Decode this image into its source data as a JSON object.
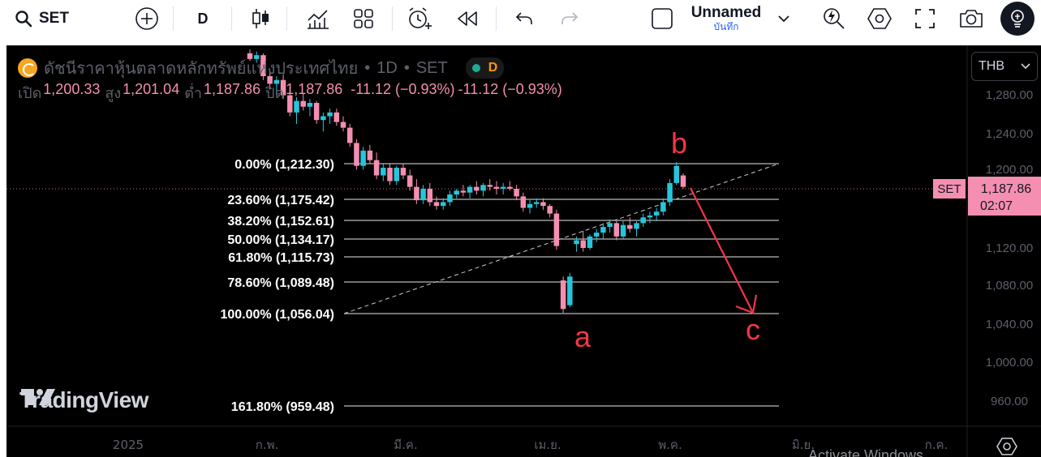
{
  "toolbar": {
    "symbol": "SET",
    "interval": "D",
    "layout_name": "Unnamed",
    "save_label": "บันทึก"
  },
  "legend": {
    "title": "ดัชนีราคาหุ้นตลาดหลักทรัพย์แห่งประเทศไทย",
    "interval": "1D",
    "exchange": "SET",
    "badge": "D",
    "o_label": "เปิด",
    "o_value": "1,200.33",
    "h_label": "สูง",
    "h_value": "1,201.04",
    "l_label": "ต่ำ",
    "l_value": "1,187.86",
    "c_label": "ปิด",
    "c_value": "1,187.86",
    "change": "-11.12 (−0.93%)",
    "change2": "-11.12 (−0.93%)"
  },
  "currency": "THB",
  "price_axis": {
    "labels": [
      "1,280.00",
      "1,240.00",
      "1,200.00",
      "1,120.00",
      "1,080.00",
      "1,040.00",
      "1,000.00",
      "960.00"
    ],
    "last_symbol": "SET",
    "last_price": "1,187.86",
    "countdown": "02:07"
  },
  "time_axis": {
    "labels": [
      "2025",
      "ก.พ.",
      "มี.ค.",
      "เม.ย.",
      "พ.ค.",
      "มิ.ย.",
      "ก.ค."
    ]
  },
  "watermark": "TradingView",
  "activate_text": "Activate Windows",
  "colors": {
    "up": "#26c6da",
    "down": "#f48fb1",
    "fib_line": "#e8e8e8",
    "wave_label": "#f23645",
    "last_price_bg": "#f48fb1"
  },
  "chart_data": {
    "type": "candlestick",
    "y_scale_note": "price in THB index points",
    "fib_levels": [
      {
        "label": "0.00% (1,212.30)",
        "pct": 0,
        "price": 1212.3
      },
      {
        "label": "23.60% (1,175.42)",
        "pct": 23.6,
        "price": 1175.42
      },
      {
        "label": "38.20% (1,152.61)",
        "pct": 38.2,
        "price": 1152.61
      },
      {
        "label": "50.00% (1,134.17)",
        "pct": 50.0,
        "price": 1134.17
      },
      {
        "label": "61.80% (1,115.73)",
        "pct": 61.8,
        "price": 1115.73
      },
      {
        "label": "78.60% (1,089.48)",
        "pct": 78.6,
        "price": 1089.48
      },
      {
        "label": "100.00% (1,056.04)",
        "pct": 100,
        "price": 1056.04
      },
      {
        "label": "161.80% (959.48)",
        "pct": 161.8,
        "price": 959.48
      }
    ],
    "wave_labels": [
      "a",
      "b",
      "c"
    ],
    "candles": [
      [
        1328,
        1332,
        1320,
        1322
      ],
      [
        1322,
        1330,
        1318,
        1326
      ],
      [
        1326,
        1328,
        1300,
        1304
      ],
      [
        1304,
        1310,
        1290,
        1296
      ],
      [
        1296,
        1304,
        1284,
        1300
      ],
      [
        1300,
        1306,
        1280,
        1284
      ],
      [
        1284,
        1292,
        1262,
        1266
      ],
      [
        1266,
        1282,
        1254,
        1278
      ],
      [
        1278,
        1286,
        1268,
        1272
      ],
      [
        1272,
        1280,
        1262,
        1276
      ],
      [
        1276,
        1278,
        1254,
        1258
      ],
      [
        1258,
        1266,
        1246,
        1262
      ],
      [
        1262,
        1270,
        1254,
        1266
      ],
      [
        1266,
        1270,
        1252,
        1256
      ],
      [
        1256,
        1262,
        1246,
        1250
      ],
      [
        1250,
        1254,
        1230,
        1234
      ],
      [
        1234,
        1238,
        1206,
        1210
      ],
      [
        1210,
        1230,
        1206,
        1226
      ],
      [
        1226,
        1232,
        1212,
        1216
      ],
      [
        1216,
        1224,
        1196,
        1200
      ],
      [
        1200,
        1212,
        1194,
        1208
      ],
      [
        1208,
        1212,
        1190,
        1194
      ],
      [
        1194,
        1210,
        1190,
        1208
      ],
      [
        1208,
        1212,
        1196,
        1200
      ],
      [
        1200,
        1206,
        1184,
        1188
      ],
      [
        1188,
        1196,
        1170,
        1174
      ],
      [
        1174,
        1190,
        1170,
        1186
      ],
      [
        1186,
        1192,
        1168,
        1172
      ],
      [
        1172,
        1178,
        1164,
        1168
      ],
      [
        1168,
        1176,
        1164,
        1172
      ],
      [
        1172,
        1184,
        1168,
        1180
      ],
      [
        1180,
        1186,
        1176,
        1184
      ],
      [
        1184,
        1190,
        1178,
        1182
      ],
      [
        1182,
        1190,
        1176,
        1188
      ],
      [
        1188,
        1194,
        1180,
        1184
      ],
      [
        1184,
        1192,
        1178,
        1190
      ],
      [
        1190,
        1196,
        1184,
        1188
      ],
      [
        1188,
        1194,
        1180,
        1186
      ],
      [
        1186,
        1192,
        1180,
        1188
      ],
      [
        1188,
        1194,
        1184,
        1186
      ],
      [
        1186,
        1190,
        1174,
        1178
      ],
      [
        1178,
        1182,
        1162,
        1166
      ],
      [
        1166,
        1174,
        1160,
        1170
      ],
      [
        1170,
        1176,
        1166,
        1172
      ],
      [
        1172,
        1176,
        1164,
        1168
      ],
      [
        1168,
        1170,
        1156,
        1160
      ],
      [
        1160,
        1164,
        1122,
        1126
      ],
      [
        1090,
        1094,
        1056,
        1060
      ],
      [
        1064,
        1098,
        1062,
        1094
      ],
      [
        1128,
        1136,
        1120,
        1132
      ],
      [
        1132,
        1142,
        1120,
        1124
      ],
      [
        1124,
        1138,
        1122,
        1136
      ],
      [
        1136,
        1144,
        1130,
        1140
      ],
      [
        1140,
        1150,
        1134,
        1146
      ],
      [
        1146,
        1154,
        1140,
        1150
      ],
      [
        1150,
        1152,
        1132,
        1136
      ],
      [
        1136,
        1152,
        1134,
        1148
      ],
      [
        1148,
        1156,
        1140,
        1144
      ],
      [
        1144,
        1152,
        1136,
        1150
      ],
      [
        1150,
        1160,
        1146,
        1156
      ],
      [
        1156,
        1162,
        1150,
        1158
      ],
      [
        1158,
        1166,
        1152,
        1162
      ],
      [
        1162,
        1176,
        1158,
        1172
      ],
      [
        1172,
        1196,
        1168,
        1192
      ],
      [
        1192,
        1214,
        1190,
        1210
      ],
      [
        1200,
        1202,
        1186,
        1188
      ]
    ]
  }
}
